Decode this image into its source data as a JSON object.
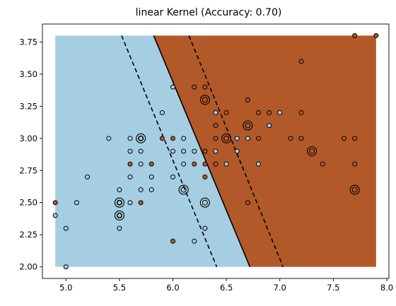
{
  "chart_data": {
    "type": "scatter",
    "title": "linear Kernel (Accuracy: 0.70)",
    "xlabel": "",
    "ylabel": "",
    "xlim": [
      4.78,
      8.02
    ],
    "ylim": [
      1.91,
      3.89
    ],
    "xticks": [
      "5.0",
      "5.5",
      "6.0",
      "6.5",
      "7.0",
      "7.5",
      "8.0"
    ],
    "yticks": [
      "2.00",
      "2.25",
      "2.50",
      "2.75",
      "3.00",
      "3.25",
      "3.50",
      "3.75"
    ],
    "xtick_values": [
      5.0,
      5.5,
      6.0,
      6.5,
      7.0,
      7.5,
      8.0
    ],
    "ytick_values": [
      2.0,
      2.25,
      2.5,
      2.75,
      3.0,
      3.25,
      3.5,
      3.75
    ],
    "grid": false,
    "region_x": [
      4.9,
      7.9
    ],
    "region_y": [
      2.0,
      3.8
    ],
    "decision_boundary": [
      [
        5.82,
        3.8
      ],
      [
        6.72,
        2.0
      ]
    ],
    "margin_lines": [
      [
        [
          5.52,
          3.8
        ],
        [
          6.41,
          2.0
        ]
      ],
      [
        [
          6.15,
          3.8
        ],
        [
          7.03,
          2.0
        ]
      ]
    ],
    "colors": {
      "class_0": "#a6cee3",
      "class_1": "#b15928",
      "boundary": "#000000"
    },
    "points": [
      {
        "x": 4.9,
        "y": 2.5,
        "c": 1
      },
      {
        "x": 4.9,
        "y": 2.4,
        "c": 0
      },
      {
        "x": 5.0,
        "y": 2.3,
        "c": 0
      },
      {
        "x": 5.0,
        "y": 2.0,
        "c": 0
      },
      {
        "x": 5.1,
        "y": 2.5,
        "c": 0
      },
      {
        "x": 5.2,
        "y": 2.7,
        "c": 0
      },
      {
        "x": 5.4,
        "y": 3.0,
        "c": 0
      },
      {
        "x": 5.5,
        "y": 2.6,
        "c": 0
      },
      {
        "x": 5.5,
        "y": 2.5,
        "c": 0
      },
      {
        "x": 5.5,
        "y": 2.4,
        "c": 0
      },
      {
        "x": 5.5,
        "y": 2.3,
        "c": 0
      },
      {
        "x": 5.6,
        "y": 3.0,
        "c": 0
      },
      {
        "x": 5.6,
        "y": 2.9,
        "c": 0
      },
      {
        "x": 5.6,
        "y": 2.8,
        "c": 1
      },
      {
        "x": 5.6,
        "y": 2.7,
        "c": 0
      },
      {
        "x": 5.6,
        "y": 2.5,
        "c": 0
      },
      {
        "x": 5.7,
        "y": 3.0,
        "c": 0
      },
      {
        "x": 5.7,
        "y": 2.9,
        "c": 0
      },
      {
        "x": 5.7,
        "y": 2.8,
        "c": 0
      },
      {
        "x": 5.7,
        "y": 2.6,
        "c": 0
      },
      {
        "x": 5.7,
        "y": 2.5,
        "c": 1
      },
      {
        "x": 5.8,
        "y": 2.8,
        "c": 1
      },
      {
        "x": 5.8,
        "y": 2.7,
        "c": 0
      },
      {
        "x": 5.8,
        "y": 2.6,
        "c": 0
      },
      {
        "x": 5.9,
        "y": 3.2,
        "c": 0
      },
      {
        "x": 5.9,
        "y": 3.0,
        "c": 1
      },
      {
        "x": 6.0,
        "y": 3.4,
        "c": 0
      },
      {
        "x": 6.0,
        "y": 3.0,
        "c": 1
      },
      {
        "x": 6.0,
        "y": 2.9,
        "c": 0
      },
      {
        "x": 6.0,
        "y": 2.7,
        "c": 0
      },
      {
        "x": 6.0,
        "y": 2.2,
        "c": 1
      },
      {
        "x": 6.1,
        "y": 3.0,
        "c": 0
      },
      {
        "x": 6.1,
        "y": 2.9,
        "c": 0
      },
      {
        "x": 6.1,
        "y": 2.8,
        "c": 0
      },
      {
        "x": 6.2,
        "y": 3.4,
        "c": 1
      },
      {
        "x": 6.2,
        "y": 2.9,
        "c": 0
      },
      {
        "x": 6.2,
        "y": 2.8,
        "c": 1
      },
      {
        "x": 6.2,
        "y": 2.2,
        "c": 0
      },
      {
        "x": 6.3,
        "y": 3.4,
        "c": 1
      },
      {
        "x": 6.3,
        "y": 2.9,
        "c": 1
      },
      {
        "x": 6.3,
        "y": 2.8,
        "c": 1
      },
      {
        "x": 6.3,
        "y": 2.7,
        "c": 1
      },
      {
        "x": 6.3,
        "y": 2.3,
        "c": 0
      },
      {
        "x": 6.4,
        "y": 3.2,
        "c": 0
      },
      {
        "x": 6.4,
        "y": 3.1,
        "c": 1
      },
      {
        "x": 6.4,
        "y": 2.9,
        "c": 0
      },
      {
        "x": 6.4,
        "y": 2.8,
        "c": 1
      },
      {
        "x": 6.4,
        "y": 3.0,
        "c": 1
      },
      {
        "x": 6.5,
        "y": 3.2,
        "c": 1
      },
      {
        "x": 6.5,
        "y": 2.8,
        "c": 0
      },
      {
        "x": 6.6,
        "y": 3.0,
        "c": 0
      },
      {
        "x": 6.6,
        "y": 2.9,
        "c": 0
      },
      {
        "x": 6.7,
        "y": 3.3,
        "c": 1
      },
      {
        "x": 6.7,
        "y": 3.0,
        "c": 0
      },
      {
        "x": 6.7,
        "y": 2.5,
        "c": 1
      },
      {
        "x": 6.8,
        "y": 3.2,
        "c": 1
      },
      {
        "x": 6.8,
        "y": 3.0,
        "c": 1
      },
      {
        "x": 6.8,
        "y": 2.8,
        "c": 0
      },
      {
        "x": 6.9,
        "y": 3.2,
        "c": 1
      },
      {
        "x": 6.9,
        "y": 3.1,
        "c": 0
      },
      {
        "x": 7.0,
        "y": 3.2,
        "c": 0
      },
      {
        "x": 7.1,
        "y": 3.0,
        "c": 1
      },
      {
        "x": 7.2,
        "y": 3.6,
        "c": 1
      },
      {
        "x": 7.2,
        "y": 3.2,
        "c": 1
      },
      {
        "x": 7.2,
        "y": 3.0,
        "c": 1
      },
      {
        "x": 7.4,
        "y": 2.8,
        "c": 1
      },
      {
        "x": 7.6,
        "y": 3.0,
        "c": 1
      },
      {
        "x": 7.7,
        "y": 3.8,
        "c": 1
      },
      {
        "x": 7.7,
        "y": 3.0,
        "c": 1
      },
      {
        "x": 7.7,
        "y": 2.8,
        "c": 1
      },
      {
        "x": 7.9,
        "y": 3.8,
        "c": 1
      }
    ],
    "support_vectors": [
      {
        "x": 5.5,
        "y": 2.5
      },
      {
        "x": 5.5,
        "y": 2.4
      },
      {
        "x": 5.7,
        "y": 3.0
      },
      {
        "x": 6.1,
        "y": 2.6
      },
      {
        "x": 6.3,
        "y": 3.3
      },
      {
        "x": 6.3,
        "y": 2.5
      },
      {
        "x": 6.5,
        "y": 3.0
      },
      {
        "x": 6.7,
        "y": 3.1
      },
      {
        "x": 7.3,
        "y": 2.9
      },
      {
        "x": 7.7,
        "y": 2.6
      }
    ]
  }
}
